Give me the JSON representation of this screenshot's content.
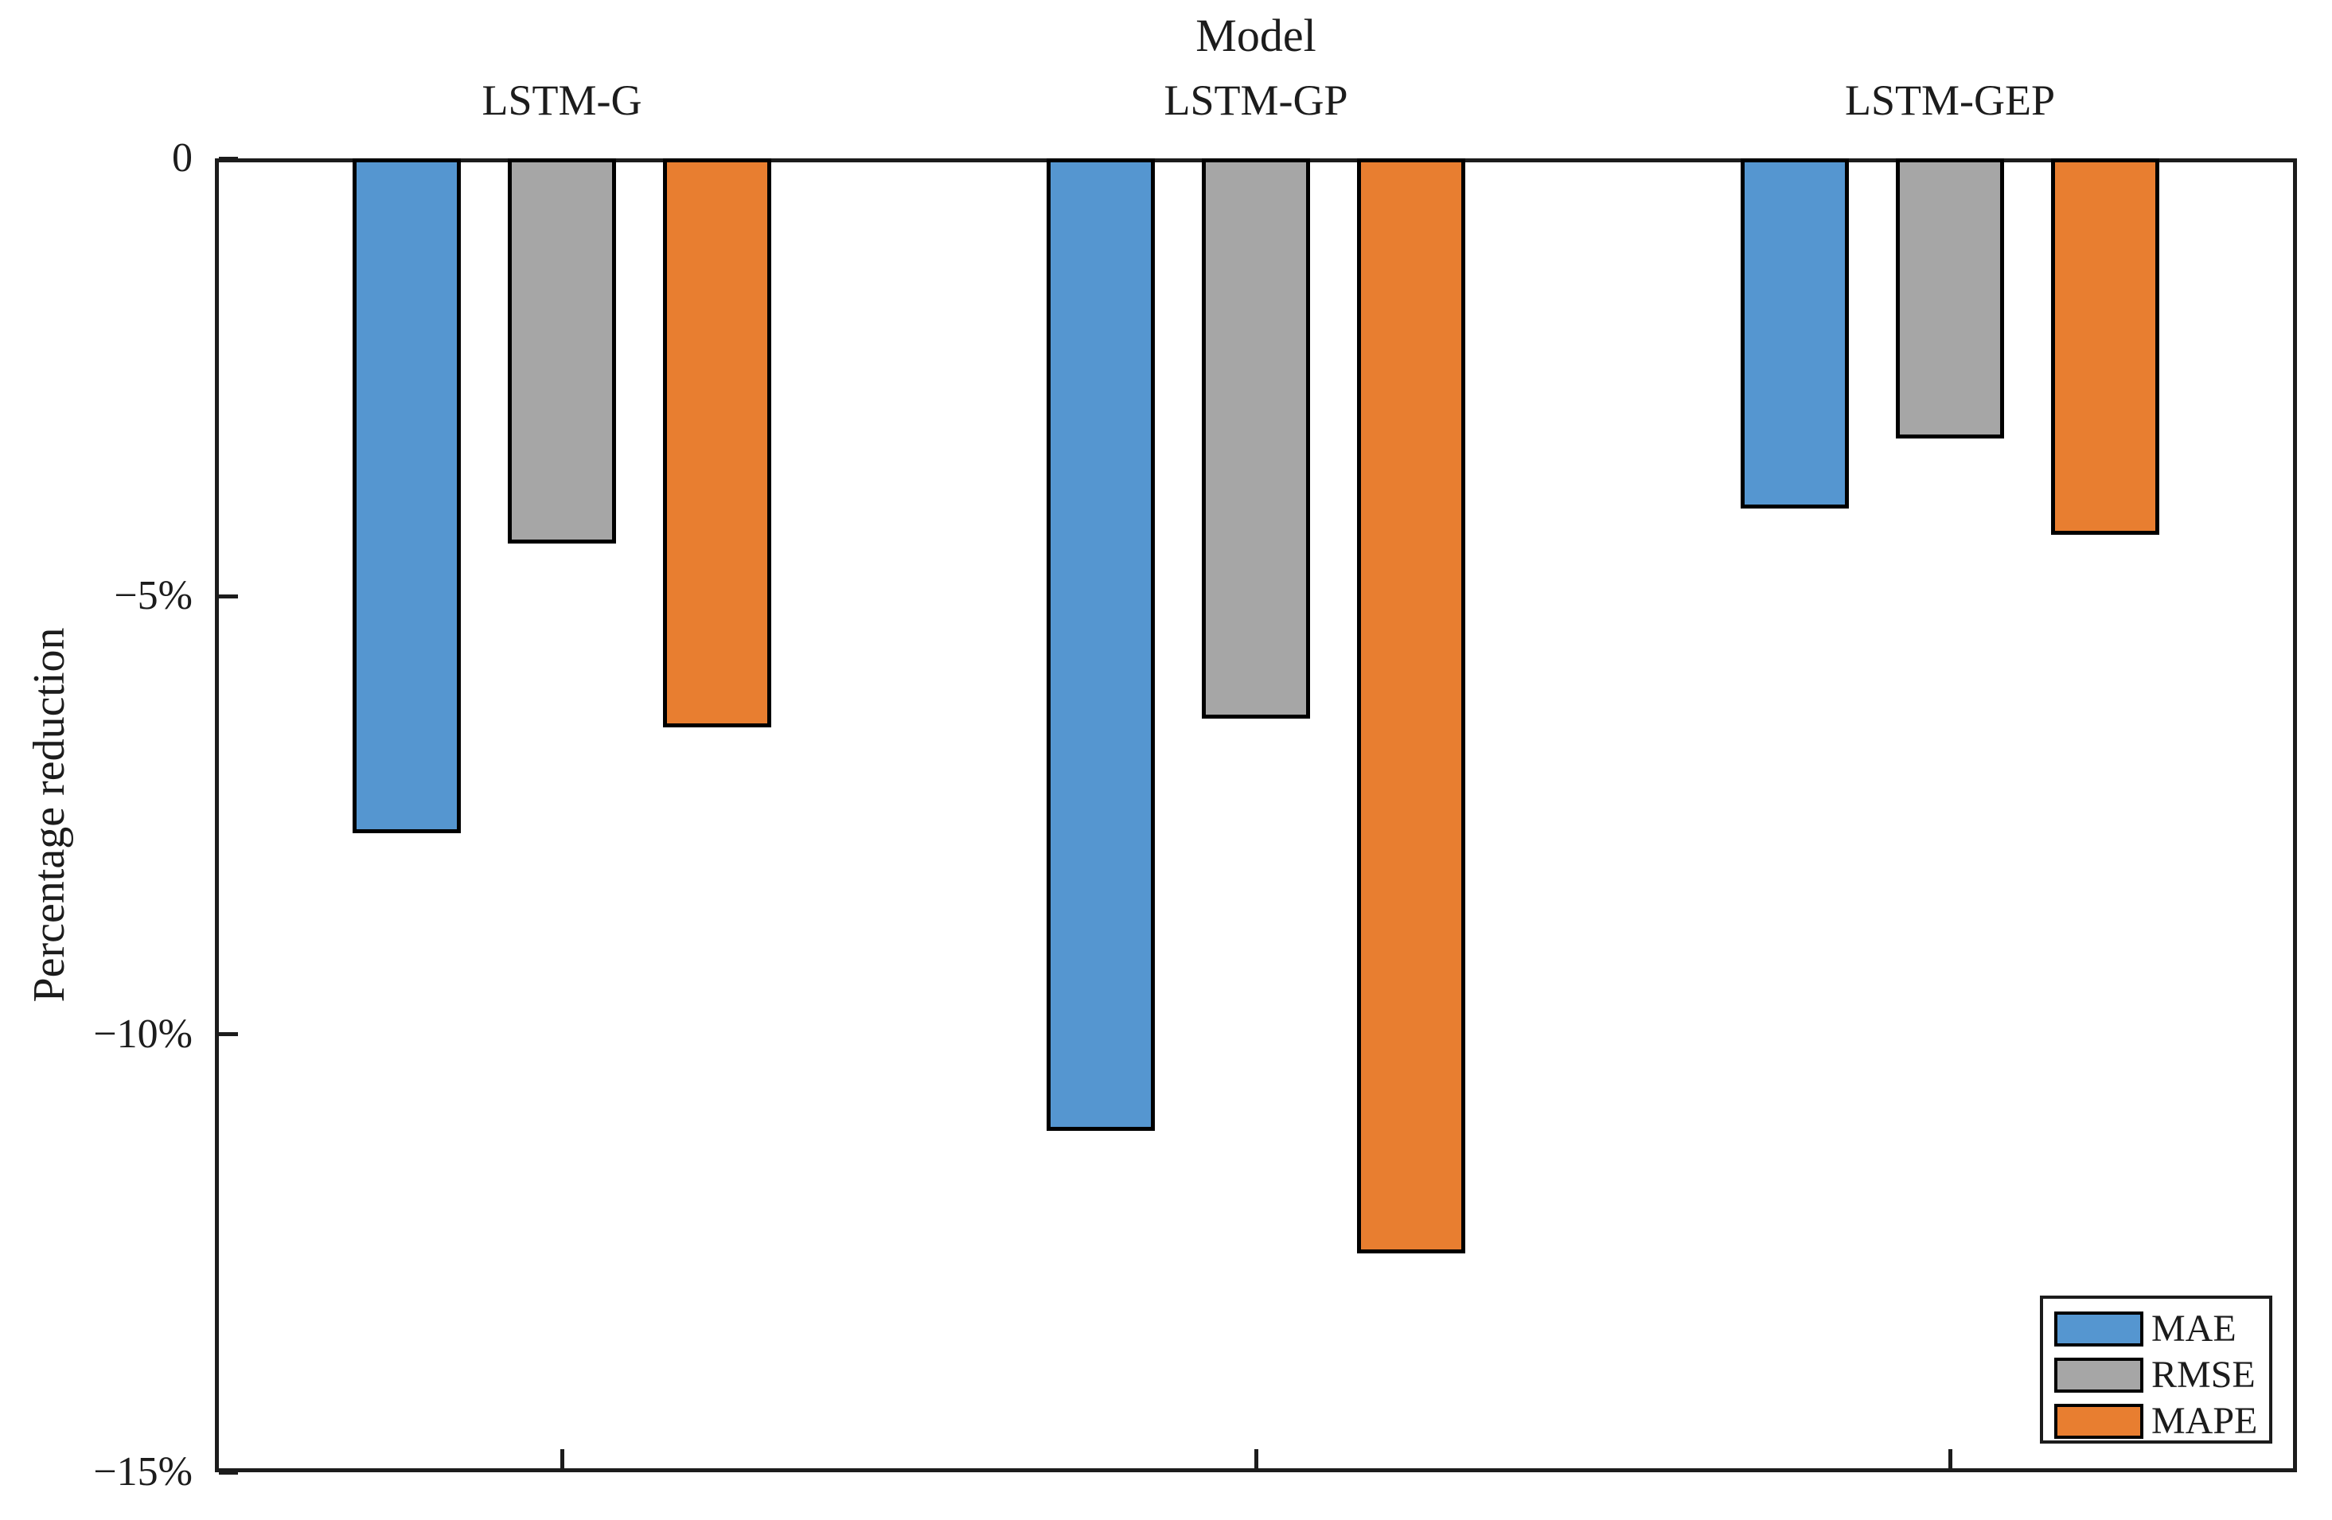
{
  "chart_data": {
    "type": "bar",
    "title": "Model",
    "ylabel": "Percentage reduction",
    "categories": [
      "LSTM-G",
      "LSTM-GP",
      "LSTM-GEP"
    ],
    "series": [
      {
        "name": "MAE",
        "color": "#5596D0",
        "values": [
          -7.7,
          -11.1,
          -4.0
        ]
      },
      {
        "name": "RMSE",
        "color": "#A6A6A6",
        "values": [
          -4.4,
          -6.4,
          -3.2
        ]
      },
      {
        "name": "MAPE",
        "color": "#E87E30",
        "values": [
          -6.5,
          -12.5,
          -4.3
        ]
      }
    ],
    "ylim": [
      -15,
      0
    ],
    "yticks": [
      {
        "value": 0,
        "label": "0"
      },
      {
        "value": -5,
        "label": "−5%"
      },
      {
        "value": -10,
        "label": "−10%"
      },
      {
        "value": -15,
        "label": "−15%"
      }
    ],
    "legend": {
      "position": "lower-right",
      "entries": [
        "MAE",
        "RMSE",
        "MAPE"
      ]
    },
    "grid": false,
    "bar_outline_color": "#000000",
    "axis_color": "#1C1C1C"
  }
}
